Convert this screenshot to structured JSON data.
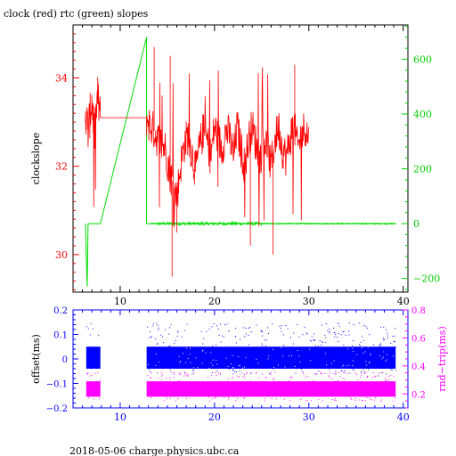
{
  "page": {
    "title": "clock (red) rtc (green) slopes",
    "footer": "2018-05-06 charge.physics.ubc.ca"
  },
  "colors": {
    "clock": "#ff0000",
    "rtc": "#00dd00",
    "offset": "#0000ff",
    "rndtrip": "#ff00ff",
    "axis": "#000000"
  },
  "chart_data": [
    {
      "type": "line",
      "title": "clock (red) rtc (green) slopes",
      "xlabel": "",
      "ylabel": "clockslope",
      "y2label": "",
      "xlim": [
        5,
        40.5
      ],
      "ylim": [
        29.15,
        35.2
      ],
      "y2lim": [
        -250,
        725
      ],
      "xticks": [
        10,
        20,
        30,
        40
      ],
      "yticks": [
        30,
        32,
        34
      ],
      "y2ticks": [
        -200,
        0,
        200,
        400,
        600
      ],
      "series": [
        {
          "name": "clock",
          "axis": "left",
          "color": "#ff0000",
          "x": [
            6.3,
            6.6,
            7.0,
            7.3,
            7.6,
            7.9,
            8.5,
            10,
            11.5,
            12.8,
            13.2,
            13.6,
            14.0,
            14.4,
            14.8,
            15.2,
            15.6,
            16.0,
            16.4,
            16.8,
            17.2,
            17.6,
            18.0,
            18.4,
            18.8,
            19.2,
            19.6,
            20.0,
            20.4,
            20.8,
            21.2,
            21.6,
            22.0,
            22.4,
            22.8,
            23.2,
            23.6,
            24.0,
            24.4,
            24.8,
            25.2,
            25.6,
            26.0,
            26.4,
            26.8,
            27.2,
            27.6,
            28.0,
            28.4,
            28.8,
            29.2,
            29.6,
            30.0
          ],
          "y": [
            33.3,
            32.8,
            33.5,
            32.7,
            33.6,
            33.1,
            33.1,
            33.1,
            33.1,
            33.1,
            32.9,
            32.8,
            32.6,
            32.5,
            32.4,
            31.9,
            31.6,
            31.3,
            32.0,
            32.5,
            32.7,
            32.3,
            31.9,
            32.4,
            32.8,
            32.6,
            32.2,
            32.9,
            32.6,
            32.4,
            32.8,
            32.7,
            32.2,
            32.9,
            32.4,
            32.0,
            32.6,
            32.9,
            32.5,
            32.1,
            32.7,
            32.4,
            32.0,
            32.6,
            32.9,
            32.4,
            32.2,
            32.6,
            33.0,
            32.4,
            32.7,
            32.9,
            32.6
          ]
        },
        {
          "name": "rtc",
          "axis": "right",
          "color": "#00dd00",
          "x": [
            6.3,
            6.5,
            6.6,
            6.8,
            7.0,
            7.5,
            7.9,
            12.8,
            12.8,
            13.2,
            14,
            16,
            18,
            20,
            22,
            24,
            26,
            28,
            30,
            32,
            34,
            36,
            38,
            39.2
          ],
          "y": [
            0,
            -230,
            0,
            0,
            0,
            0,
            0,
            680,
            0,
            0,
            0,
            0,
            0,
            0,
            0,
            0,
            0,
            0,
            0,
            0,
            0,
            0,
            0,
            0
          ]
        }
      ]
    },
    {
      "type": "scatter",
      "title": "",
      "xlabel": "",
      "ylabel": "offset(ms)",
      "y2label": "rnd−trip(ms)",
      "xlim": [
        5,
        40.5
      ],
      "ylim": [
        -0.2,
        0.2
      ],
      "y2lim": [
        0.1,
        0.8
      ],
      "xticks": [
        10,
        20,
        30,
        40
      ],
      "yticks": [
        -0.2,
        -0.1,
        0,
        0.1,
        0.2
      ],
      "ytick_labels": [
        "−0.2",
        "−0.1",
        "0",
        "0.1",
        "0.2"
      ],
      "y2ticks": [
        0.2,
        0.4,
        0.6,
        0.8
      ],
      "y2tick_labels": [
        "0.2",
        "0.4",
        "0.6",
        "0.8"
      ],
      "series": [
        {
          "name": "offset",
          "axis": "left",
          "color": "#0000ff",
          "x_ranges": [
            [
              6.4,
              7.9
            ],
            [
              12.8,
              39.2
            ]
          ],
          "y_band": [
            -0.04,
            0.05
          ],
          "outlier_range": [
            -0.06,
            0.15
          ]
        },
        {
          "name": "rnd-trip",
          "axis": "right",
          "color": "#ff00ff",
          "x_ranges": [
            [
              6.4,
              7.9
            ],
            [
              12.8,
              39.2
            ]
          ],
          "y_band": [
            0.18,
            0.29
          ],
          "outlier_range": [
            0.15,
            0.36
          ]
        }
      ]
    }
  ]
}
